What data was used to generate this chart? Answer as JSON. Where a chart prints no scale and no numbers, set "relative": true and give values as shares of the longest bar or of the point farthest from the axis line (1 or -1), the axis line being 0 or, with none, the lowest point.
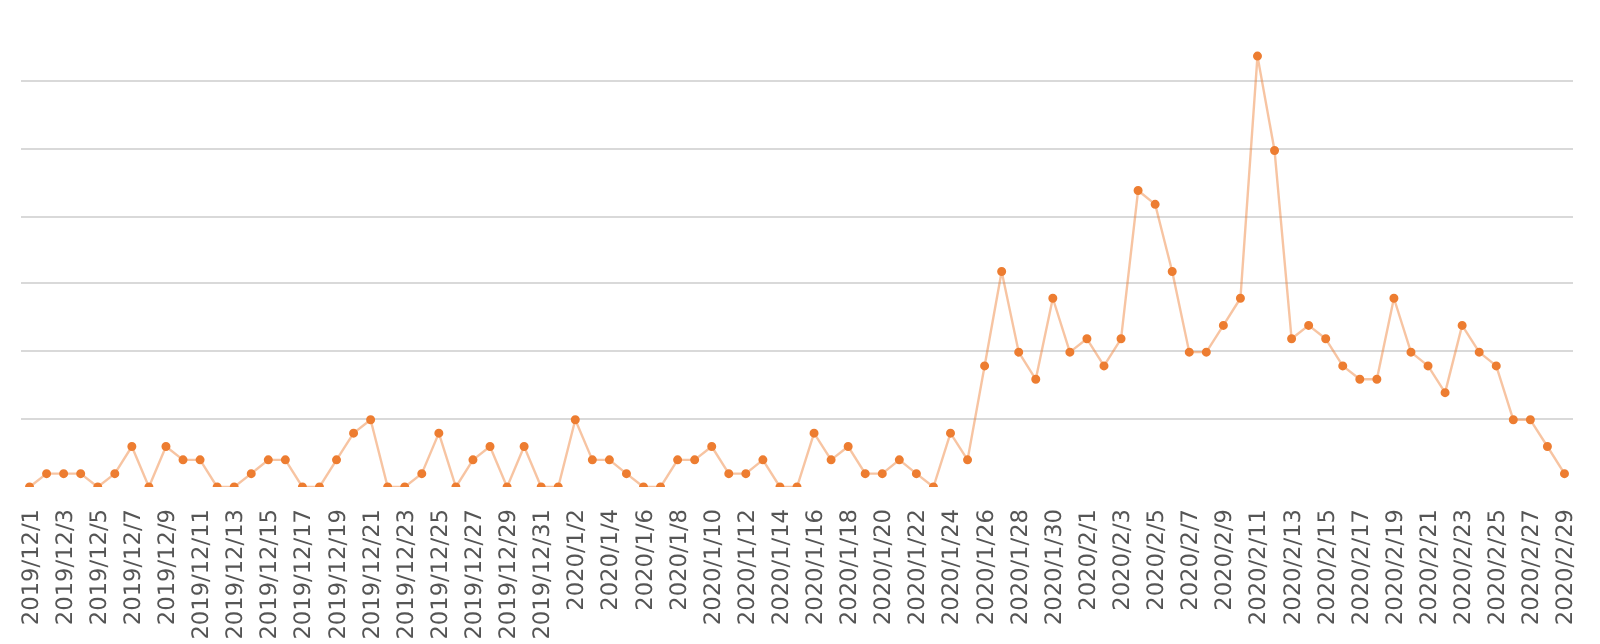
{
  "chart_data": {
    "type": "line",
    "relative": true,
    "grid": "y",
    "marker": "circle",
    "line_style": "solid",
    "categories": [
      "2019/12/1",
      null,
      "2019/12/3",
      null,
      "2019/12/5",
      null,
      "2019/12/7",
      null,
      "2019/12/9",
      null,
      "2019/12/11",
      null,
      "2019/12/13",
      null,
      "2019/12/15",
      null,
      "2019/12/17",
      null,
      "2019/12/19",
      null,
      "2019/12/21",
      null,
      "2019/12/23",
      null,
      "2019/12/25",
      null,
      "2019/12/27",
      null,
      "2019/12/29",
      null,
      "2019/12/31",
      null,
      "2020/1/2",
      null,
      "2020/1/4",
      null,
      "2020/1/6",
      null,
      "2020/1/8",
      null,
      "2020/1/10",
      null,
      "2020/1/12",
      null,
      "2020/1/14",
      null,
      "2020/1/16",
      null,
      "2020/1/18",
      null,
      "2020/1/20",
      null,
      "2020/1/22",
      null,
      "2020/1/24",
      null,
      "2020/1/26",
      null,
      "2020/1/28",
      null,
      "2020/1/30",
      null,
      "2020/2/1",
      null,
      "2020/2/3",
      null,
      "2020/2/5",
      null,
      "2020/2/7",
      null,
      "2020/2/9",
      null,
      "2020/2/11",
      null,
      "2020/2/13",
      null,
      "2020/2/15",
      null,
      "2020/2/17",
      null,
      "2020/2/19",
      null,
      "2020/2/21",
      null,
      "2020/2/23",
      null,
      "2020/2/25",
      null,
      "2020/2/27",
      null,
      "2020/2/29"
    ],
    "series": [
      {
        "color": "#ed7d31",
        "values": [
          0,
          0.031,
          0.031,
          0.031,
          0,
          0.031,
          0.094,
          0,
          0.094,
          0.063,
          0.063,
          0,
          0,
          0.031,
          0.063,
          0.063,
          0,
          0,
          0.063,
          0.125,
          0.156,
          0,
          0,
          0.031,
          0.125,
          0,
          0.063,
          0.094,
          0,
          0.094,
          0,
          0,
          0.156,
          0.063,
          0.063,
          0.031,
          0,
          0,
          0.063,
          0.063,
          0.094,
          0.031,
          0.031,
          0.063,
          0,
          0,
          0.125,
          0.063,
          0.094,
          0.031,
          0.031,
          0.063,
          0.031,
          0,
          0.125,
          0.063,
          0.281,
          0.5,
          0.313,
          0.25,
          0.438,
          0.313,
          0.344,
          0.281,
          0.344,
          0.688,
          0.656,
          0.5,
          0.313,
          0.313,
          0.375,
          0.438,
          1,
          0.781,
          0.344,
          0.375,
          0.344,
          0.281,
          0.25,
          0.25,
          0.438,
          0.313,
          0.281,
          0.219,
          0.375,
          0.313,
          0.281,
          0.156,
          0.156,
          0.094,
          0.031
        ]
      }
    ]
  }
}
